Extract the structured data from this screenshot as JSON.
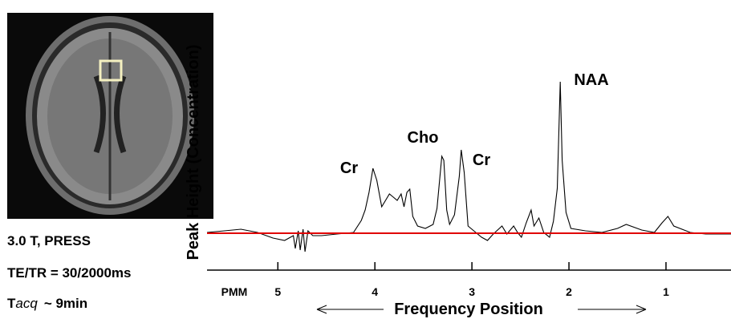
{
  "chart_data": {
    "type": "line",
    "ylabel": "Peak Height (Concentration)",
    "xlabel": "Frequency Position",
    "x_axis_note": "PMM",
    "xlim": [
      5.73,
      0.33
    ],
    "xticks": [
      5,
      4,
      3,
      2,
      1
    ],
    "ylim": [
      -4,
      21
    ],
    "baseline": 0,
    "baseline_color": "#e00000",
    "annotations": [
      "Cr",
      "Cho",
      "Cr",
      "NAA"
    ],
    "x": [
      5.73,
      5.55,
      5.38,
      5.21,
      5.05,
      4.93,
      4.84,
      4.82,
      4.79,
      4.77,
      4.74,
      4.72,
      4.69,
      4.64,
      4.55,
      4.39,
      4.22,
      4.14,
      4.1,
      4.06,
      4.02,
      3.98,
      3.93,
      3.89,
      3.85,
      3.81,
      3.77,
      3.73,
      3.7,
      3.67,
      3.64,
      3.61,
      3.56,
      3.48,
      3.4,
      3.36,
      3.31,
      3.29,
      3.26,
      3.23,
      3.18,
      3.13,
      3.11,
      3.08,
      3.04,
      2.98,
      2.9,
      2.84,
      2.78,
      2.69,
      2.64,
      2.57,
      2.53,
      2.49,
      2.44,
      2.39,
      2.36,
      2.31,
      2.26,
      2.2,
      2.16,
      2.12,
      2.09,
      2.07,
      2.03,
      1.98,
      1.83,
      1.66,
      1.5,
      1.41,
      1.25,
      1.12,
      1.04,
      0.98,
      0.92,
      0.75,
      0.59,
      0.33
    ],
    "series": [
      {
        "color": "#000000",
        "values": [
          0.1,
          0.3,
          0.5,
          0.1,
          -0.6,
          -0.9,
          -0.3,
          -1.9,
          0.3,
          -2.1,
          0.5,
          -2.3,
          0.3,
          -0.3,
          -0.3,
          -0.1,
          0.1,
          1.6,
          2.9,
          5.1,
          8.1,
          6.6,
          3.3,
          4.1,
          4.9,
          4.5,
          4.1,
          4.9,
          3.3,
          5.1,
          5.5,
          2.1,
          0.9,
          0.6,
          1.1,
          3.1,
          9.6,
          9.1,
          2.9,
          1.1,
          2.3,
          7.1,
          10.4,
          7.6,
          0.9,
          0.3,
          -0.5,
          -0.9,
          -0.1,
          0.9,
          -0.1,
          0.9,
          0.1,
          -0.5,
          1.3,
          2.9,
          0.9,
          1.9,
          0.1,
          -0.5,
          1.5,
          5.6,
          18.9,
          9.1,
          2.6,
          0.6,
          0.3,
          0.1,
          0.6,
          1.1,
          0.4,
          0.1,
          1.3,
          2.1,
          0.9,
          0.1,
          -0.1,
          -0.1
        ]
      }
    ]
  },
  "scan_notes": {
    "line1": "3.0 T, PRESS",
    "line2": "TE/TR = 30/2000ms",
    "line3": [
      "T",
      "acq",
      "~ 9min"
    ]
  }
}
